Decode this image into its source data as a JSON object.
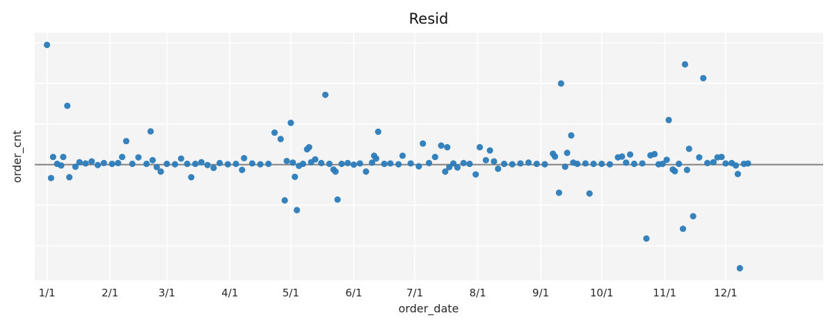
{
  "chart_data": {
    "type": "scatter",
    "title": "Resid",
    "xlabel": "order_date",
    "ylabel": "order_cnt",
    "x_ticks": [
      "1/1",
      "2/1",
      "3/1",
      "4/1",
      "5/1",
      "6/1",
      "7/1",
      "8/1",
      "9/1",
      "10/1",
      "11/1",
      "12/1"
    ],
    "x_tick_days": [
      1,
      32,
      60,
      91,
      121,
      152,
      182,
      213,
      244,
      274,
      305,
      335
    ],
    "xlim": [
      -5,
      383
    ],
    "ylim": [
      -2.85,
      3.25
    ],
    "y_ticks_visible": false,
    "reference_line_y": 0,
    "grid": true,
    "legend": "none",
    "marker_color": "#2b7bb9",
    "grid_color": "#ffffff",
    "plot_background": "#f4f4f4",
    "reference_line_color": "#808080",
    "points": [
      {
        "day": 1,
        "value": 2.95
      },
      {
        "day": 3,
        "value": -0.33
      },
      {
        "day": 4,
        "value": 0.19
      },
      {
        "day": 6,
        "value": 0.02
      },
      {
        "day": 8,
        "value": -0.02
      },
      {
        "day": 9,
        "value": 0.19
      },
      {
        "day": 11,
        "value": 1.45
      },
      {
        "day": 12,
        "value": -0.31
      },
      {
        "day": 15,
        "value": -0.05
      },
      {
        "day": 17,
        "value": 0.06
      },
      {
        "day": 20,
        "value": 0.03
      },
      {
        "day": 23,
        "value": 0.08
      },
      {
        "day": 26,
        "value": -0.01
      },
      {
        "day": 29,
        "value": 0.04
      },
      {
        "day": 33,
        "value": 0.02
      },
      {
        "day": 36,
        "value": 0.04
      },
      {
        "day": 38,
        "value": 0.19
      },
      {
        "day": 40,
        "value": 0.58
      },
      {
        "day": 43,
        "value": 0.02
      },
      {
        "day": 46,
        "value": 0.18
      },
      {
        "day": 50,
        "value": 0.02
      },
      {
        "day": 52,
        "value": 0.82
      },
      {
        "day": 53,
        "value": 0.11
      },
      {
        "day": 55,
        "value": -0.06
      },
      {
        "day": 57,
        "value": -0.17
      },
      {
        "day": 60,
        "value": 0.02
      },
      {
        "day": 64,
        "value": 0.01
      },
      {
        "day": 67,
        "value": 0.15
      },
      {
        "day": 70,
        "value": 0.02
      },
      {
        "day": 72,
        "value": -0.31
      },
      {
        "day": 74,
        "value": 0.02
      },
      {
        "day": 77,
        "value": 0.06
      },
      {
        "day": 80,
        "value": -0.01
      },
      {
        "day": 83,
        "value": -0.08
      },
      {
        "day": 86,
        "value": 0.04
      },
      {
        "day": 90,
        "value": 0.01
      },
      {
        "day": 94,
        "value": 0.02
      },
      {
        "day": 97,
        "value": -0.13
      },
      {
        "day": 98,
        "value": 0.16
      },
      {
        "day": 102,
        "value": 0.03
      },
      {
        "day": 106,
        "value": 0.01
      },
      {
        "day": 110,
        "value": 0.02
      },
      {
        "day": 113,
        "value": 0.79
      },
      {
        "day": 116,
        "value": 0.63
      },
      {
        "day": 118,
        "value": -0.88
      },
      {
        "day": 119,
        "value": 0.09
      },
      {
        "day": 121,
        "value": 1.03
      },
      {
        "day": 122,
        "value": 0.05
      },
      {
        "day": 123,
        "value": -0.3
      },
      {
        "day": 124,
        "value": -1.12
      },
      {
        "day": 125,
        "value": -0.03
      },
      {
        "day": 127,
        "value": 0.02
      },
      {
        "day": 129,
        "value": 0.38
      },
      {
        "day": 130,
        "value": 0.43
      },
      {
        "day": 131,
        "value": 0.06
      },
      {
        "day": 133,
        "value": 0.13
      },
      {
        "day": 136,
        "value": 0.04
      },
      {
        "day": 138,
        "value": 1.72
      },
      {
        "day": 140,
        "value": 0.02
      },
      {
        "day": 142,
        "value": -0.12
      },
      {
        "day": 143,
        "value": -0.17
      },
      {
        "day": 144,
        "value": -0.86
      },
      {
        "day": 146,
        "value": 0.02
      },
      {
        "day": 149,
        "value": 0.04
      },
      {
        "day": 152,
        "value": 0.0
      },
      {
        "day": 155,
        "value": 0.03
      },
      {
        "day": 158,
        "value": -0.17
      },
      {
        "day": 161,
        "value": 0.05
      },
      {
        "day": 162,
        "value": 0.22
      },
      {
        "day": 163,
        "value": 0.15
      },
      {
        "day": 164,
        "value": 0.81
      },
      {
        "day": 167,
        "value": 0.02
      },
      {
        "day": 170,
        "value": 0.03
      },
      {
        "day": 174,
        "value": 0.01
      },
      {
        "day": 176,
        "value": 0.22
      },
      {
        "day": 180,
        "value": 0.03
      },
      {
        "day": 184,
        "value": -0.04
      },
      {
        "day": 186,
        "value": 0.52
      },
      {
        "day": 189,
        "value": 0.04
      },
      {
        "day": 192,
        "value": 0.19
      },
      {
        "day": 195,
        "value": 0.47
      },
      {
        "day": 197,
        "value": -0.17
      },
      {
        "day": 198,
        "value": 0.43
      },
      {
        "day": 199,
        "value": -0.06
      },
      {
        "day": 201,
        "value": 0.03
      },
      {
        "day": 203,
        "value": -0.07
      },
      {
        "day": 206,
        "value": 0.04
      },
      {
        "day": 209,
        "value": 0.02
      },
      {
        "day": 212,
        "value": -0.24
      },
      {
        "day": 214,
        "value": 0.43
      },
      {
        "day": 217,
        "value": 0.11
      },
      {
        "day": 219,
        "value": 0.35
      },
      {
        "day": 221,
        "value": 0.08
      },
      {
        "day": 223,
        "value": -0.1
      },
      {
        "day": 226,
        "value": 0.02
      },
      {
        "day": 230,
        "value": 0.01
      },
      {
        "day": 234,
        "value": 0.03
      },
      {
        "day": 238,
        "value": 0.05
      },
      {
        "day": 242,
        "value": 0.02
      },
      {
        "day": 246,
        "value": 0.01
      },
      {
        "day": 250,
        "value": 0.27
      },
      {
        "day": 251,
        "value": 0.2
      },
      {
        "day": 253,
        "value": -0.69
      },
      {
        "day": 254,
        "value": 2.0
      },
      {
        "day": 256,
        "value": -0.05
      },
      {
        "day": 257,
        "value": 0.29
      },
      {
        "day": 259,
        "value": 0.72
      },
      {
        "day": 260,
        "value": 0.05
      },
      {
        "day": 262,
        "value": 0.02
      },
      {
        "day": 266,
        "value": 0.03
      },
      {
        "day": 268,
        "value": -0.71
      },
      {
        "day": 270,
        "value": 0.02
      },
      {
        "day": 274,
        "value": 0.02
      },
      {
        "day": 278,
        "value": 0.01
      },
      {
        "day": 282,
        "value": 0.18
      },
      {
        "day": 284,
        "value": 0.2
      },
      {
        "day": 286,
        "value": 0.05
      },
      {
        "day": 288,
        "value": 0.25
      },
      {
        "day": 290,
        "value": 0.02
      },
      {
        "day": 294,
        "value": 0.03
      },
      {
        "day": 296,
        "value": -1.82
      },
      {
        "day": 298,
        "value": 0.23
      },
      {
        "day": 300,
        "value": 0.26
      },
      {
        "day": 302,
        "value": 0.01
      },
      {
        "day": 304,
        "value": 0.02
      },
      {
        "day": 306,
        "value": 0.12
      },
      {
        "day": 307,
        "value": 1.1
      },
      {
        "day": 309,
        "value": -0.12
      },
      {
        "day": 310,
        "value": -0.16
      },
      {
        "day": 312,
        "value": 0.02
      },
      {
        "day": 314,
        "value": -1.58
      },
      {
        "day": 315,
        "value": 2.47
      },
      {
        "day": 316,
        "value": -0.13
      },
      {
        "day": 317,
        "value": 0.39
      },
      {
        "day": 319,
        "value": -1.27
      },
      {
        "day": 322,
        "value": 0.18
      },
      {
        "day": 324,
        "value": 2.13
      },
      {
        "day": 326,
        "value": 0.04
      },
      {
        "day": 329,
        "value": 0.06
      },
      {
        "day": 331,
        "value": 0.18
      },
      {
        "day": 333,
        "value": 0.19
      },
      {
        "day": 335,
        "value": 0.03
      },
      {
        "day": 338,
        "value": 0.04
      },
      {
        "day": 340,
        "value": -0.02
      },
      {
        "day": 341,
        "value": -0.23
      },
      {
        "day": 342,
        "value": -2.55
      },
      {
        "day": 344,
        "value": 0.02
      },
      {
        "day": 346,
        "value": 0.03
      }
    ]
  }
}
